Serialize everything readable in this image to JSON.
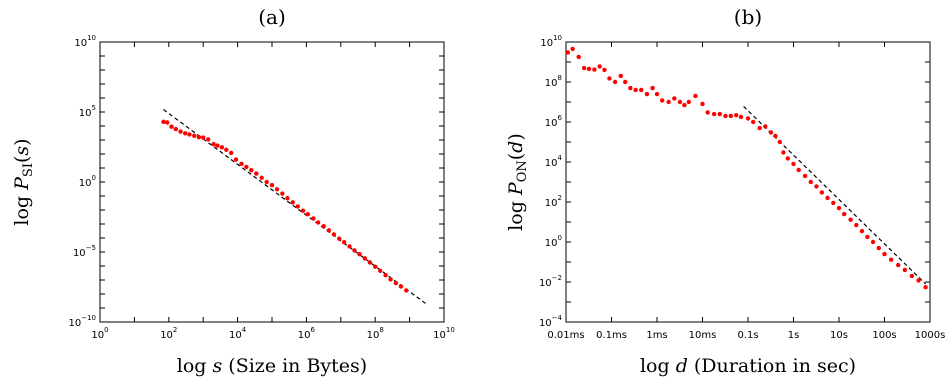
{
  "colors": {
    "points": "#ff0000",
    "fit": "#000000",
    "axes": "#000000"
  },
  "chart_data": [
    {
      "type": "scatter",
      "panel_label": "(a)",
      "x_scale": "log",
      "y_scale": "log",
      "x_label_parts": {
        "fn": "log",
        "var": "s",
        "rest": " (Size in Bytes)"
      },
      "y_label_parts": {
        "fn": "log",
        "P": "P",
        "sub": "SI",
        "var": "s"
      },
      "x_range": [
        1,
        10000000000
      ],
      "y_range": [
        1e-10,
        10000000000.0
      ],
      "x_ticks": [
        {
          "value": 1,
          "base": "10",
          "exp": "0"
        },
        {
          "value": 100,
          "base": "10",
          "exp": "2"
        },
        {
          "value": 10000,
          "base": "10",
          "exp": "4"
        },
        {
          "value": 1000000,
          "base": "10",
          "exp": "6"
        },
        {
          "value": 100000000,
          "base": "10",
          "exp": "8"
        },
        {
          "value": 10000000000,
          "base": "10",
          "exp": "10"
        }
      ],
      "y_ticks": [
        {
          "value": 1e-10,
          "base": "10",
          "exp": "−10"
        },
        {
          "value": 1e-05,
          "base": "10",
          "exp": "−5"
        },
        {
          "value": 1,
          "base": "10",
          "exp": "0"
        },
        {
          "value": 100000.0,
          "base": "10",
          "exp": "5"
        },
        {
          "value": 10000000000.0,
          "base": "10",
          "exp": "10"
        }
      ],
      "fit_line": [
        [
          70,
          150000.0
        ],
        [
          3000000000,
          2e-09
        ]
      ],
      "points": [
        [
          70,
          20000
        ],
        [
          90,
          18000
        ],
        [
          120,
          9000
        ],
        [
          160,
          6000
        ],
        [
          220,
          4000
        ],
        [
          300,
          3000
        ],
        [
          400,
          2500
        ],
        [
          550,
          2000
        ],
        [
          750,
          1600
        ],
        [
          1000,
          1500
        ],
        [
          1400,
          1100
        ],
        [
          2000,
          500
        ],
        [
          2600,
          400
        ],
        [
          3500,
          300
        ],
        [
          4700,
          200
        ],
        [
          6500,
          120
        ],
        [
          9000,
          40
        ],
        [
          13000,
          20
        ],
        [
          18000,
          12
        ],
        [
          25000,
          7
        ],
        [
          35000,
          4
        ],
        [
          50000,
          2
        ],
        [
          70000,
          1
        ],
        [
          100000,
          0.6
        ],
        [
          140000,
          0.3
        ],
        [
          200000,
          0.15
        ],
        [
          280000,
          0.07
        ],
        [
          400000,
          0.035
        ],
        [
          560000,
          0.018
        ],
        [
          800000,
          0.009
        ],
        [
          1100000,
          0.005
        ],
        [
          1600000,
          0.0025
        ],
        [
          2200000,
          0.0013
        ],
        [
          3200000,
          0.0007
        ],
        [
          4500000,
          0.00035
        ],
        [
          6300000,
          0.00018
        ],
        [
          9000000,
          9e-05
        ],
        [
          12500000,
          5e-05
        ],
        [
          18000000,
          2.5e-05
        ],
        [
          25000000,
          1.3e-05
        ],
        [
          35000000,
          7e-06
        ],
        [
          50000000,
          3.5e-06
        ],
        [
          70000000,
          1.8e-06
        ],
        [
          100000000,
          9e-07
        ],
        [
          140000000,
          4.5e-07
        ],
        [
          200000000,
          2.2e-07
        ],
        [
          280000000,
          1.1e-07
        ],
        [
          400000000,
          6e-08
        ],
        [
          560000000,
          3.5e-08
        ],
        [
          800000000,
          1.8e-08
        ]
      ]
    },
    {
      "type": "scatter",
      "panel_label": "(b)",
      "x_scale": "log",
      "y_scale": "log",
      "x_label_parts": {
        "fn": "log",
        "var": "d",
        "rest": " (Duration in sec)"
      },
      "y_label_parts": {
        "fn": "log",
        "P": "P",
        "sub": "ON",
        "var": "d"
      },
      "x_range": [
        1e-05,
        1000
      ],
      "y_range": [
        0.0001,
        10000000000
      ],
      "x_ticks": [
        {
          "value": 1e-05,
          "label": "0.01ms"
        },
        {
          "value": 0.0001,
          "label": "0.1ms"
        },
        {
          "value": 0.001,
          "label": "1ms"
        },
        {
          "value": 0.01,
          "label": "10ms"
        },
        {
          "value": 0.1,
          "label": "0.1s"
        },
        {
          "value": 1,
          "label": "1s"
        },
        {
          "value": 10,
          "label": "10s"
        },
        {
          "value": 100,
          "label": "100s"
        },
        {
          "value": 1000,
          "label": "1000s"
        }
      ],
      "y_ticks": [
        {
          "value": 0.0001,
          "base": "10",
          "exp": "−4"
        },
        {
          "value": 0.01,
          "base": "10",
          "exp": "−2"
        },
        {
          "value": 1,
          "base": "10",
          "exp": "0"
        },
        {
          "value": 100,
          "base": "10",
          "exp": "2"
        },
        {
          "value": 10000,
          "base": "10",
          "exp": "4"
        },
        {
          "value": 1000000,
          "base": "10",
          "exp": "6"
        },
        {
          "value": 100000000,
          "base": "10",
          "exp": "8"
        },
        {
          "value": 10000000000,
          "base": "10",
          "exp": "10"
        }
      ],
      "fit_line": [
        [
          0.08,
          6000000.0
        ],
        [
          800,
          0.008
        ]
      ],
      "points": [
        [
          1.1e-05,
          3000000000
        ],
        [
          1.4e-05,
          4500000000
        ],
        [
          1.9e-05,
          1800000000
        ],
        [
          2.5e-05,
          500000000
        ],
        [
          3.2e-05,
          450000000
        ],
        [
          4.2e-05,
          420000000
        ],
        [
          5.5e-05,
          600000000
        ],
        [
          7e-05,
          400000000
        ],
        [
          9e-05,
          150000000
        ],
        [
          0.00012,
          100000000
        ],
        [
          0.00016,
          200000000
        ],
        [
          0.0002,
          100000000
        ],
        [
          0.00026,
          50000000
        ],
        [
          0.00034,
          40000000
        ],
        [
          0.00045,
          40000000
        ],
        [
          0.0006,
          25000000
        ],
        [
          0.0008,
          50000000
        ],
        [
          0.001,
          25000000
        ],
        [
          0.0013,
          12000000
        ],
        [
          0.0018,
          10000000
        ],
        [
          0.0024,
          15000000
        ],
        [
          0.0032,
          10000000
        ],
        [
          0.004,
          7000000
        ],
        [
          0.005,
          10000000
        ],
        [
          0.007,
          20000000
        ],
        [
          0.01,
          8000000
        ],
        [
          0.013,
          3000000
        ],
        [
          0.018,
          2500000
        ],
        [
          0.024,
          2500000
        ],
        [
          0.032,
          2000000
        ],
        [
          0.042,
          2000000
        ],
        [
          0.055,
          2200000
        ],
        [
          0.07,
          1800000
        ],
        [
          0.1,
          1500000
        ],
        [
          0.13,
          1000000
        ],
        [
          0.18,
          500000
        ],
        [
          0.24,
          600000
        ],
        [
          0.32,
          300000
        ],
        [
          0.4,
          200000
        ],
        [
          0.5,
          100000
        ],
        [
          0.6,
          30000
        ],
        [
          0.75,
          15000
        ],
        [
          1,
          8000
        ],
        [
          1.3,
          4000
        ],
        [
          1.8,
          2000
        ],
        [
          2.4,
          1000
        ],
        [
          3.2,
          600
        ],
        [
          4.2,
          300
        ],
        [
          5.6,
          160
        ],
        [
          7.5,
          90
        ],
        [
          10,
          50
        ],
        [
          13,
          25
        ],
        [
          18,
          13
        ],
        [
          24,
          7
        ],
        [
          32,
          3.5
        ],
        [
          42,
          1.8
        ],
        [
          56,
          1
        ],
        [
          75,
          0.5
        ],
        [
          100,
          0.25
        ],
        [
          140,
          0.13
        ],
        [
          200,
          0.07
        ],
        [
          280,
          0.04
        ],
        [
          400,
          0.02
        ],
        [
          560,
          0.012
        ],
        [
          800,
          0.0055
        ]
      ]
    }
  ]
}
